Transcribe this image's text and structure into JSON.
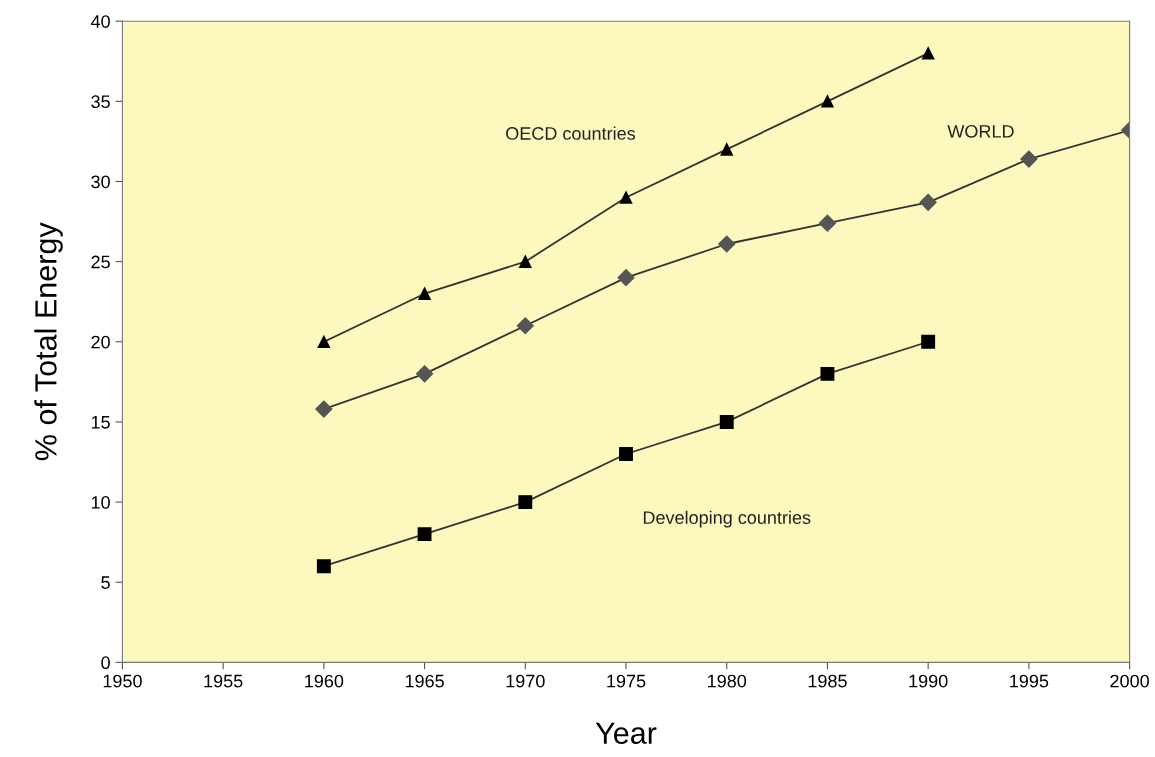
{
  "chart_data": {
    "type": "line",
    "xlabel": "Year",
    "ylabel": "% of Total Energy",
    "x": [
      1960,
      1965,
      1970,
      1975,
      1980,
      1985,
      1990,
      1995,
      2000
    ],
    "series": [
      {
        "name": "OECD countries",
        "color": "#000000",
        "marker": "triangle",
        "values": [
          20,
          23,
          25,
          29,
          32,
          35,
          38,
          null,
          null
        ]
      },
      {
        "name": "WORLD",
        "color": "#555555",
        "marker": "diamond",
        "values": [
          15.8,
          18.0,
          21.0,
          24.0,
          26.1,
          27.4,
          28.7,
          31.4,
          33.2
        ]
      },
      {
        "name": "Developing countries",
        "color": "#000000",
        "marker": "square",
        "values": [
          6,
          8,
          10,
          13,
          15,
          18,
          20,
          null,
          null
        ]
      }
    ],
    "xlim": [
      1950,
      2000
    ],
    "xticks": [
      1950,
      1955,
      1960,
      1965,
      1970,
      1975,
      1980,
      1985,
      1990,
      1995,
      2000
    ],
    "ylim": [
      0,
      40
    ],
    "yticks": [
      0,
      5,
      10,
      15,
      20,
      25,
      30,
      35,
      40
    ],
    "grid": false,
    "legend": false,
    "line_style": "solid"
  }
}
